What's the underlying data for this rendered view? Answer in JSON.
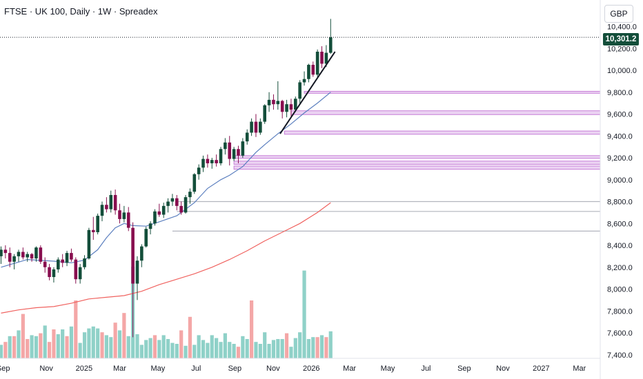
{
  "header": {
    "title": "FTSE · UK 100, Daily · 1W · Spreadex"
  },
  "currency": "GBP",
  "price_tag": "10,301.2",
  "colors": {
    "up": "#134e3a",
    "down": "#880e4f",
    "vol_up": "#8fd1c8",
    "vol_down": "#f4a7a7",
    "ma_fast": "#5b7fbf",
    "ma_slow": "#f0625f",
    "zone_fill": "#ebd2f2",
    "zone_line": "#c77fd8",
    "level_line": "#b2b5be",
    "trend": "#131722"
  },
  "chart_data": {
    "type": "candlestick",
    "title": "FTSE · UK 100, Daily · 1W · Spreadex",
    "ylim": [
      7400,
      10650
    ],
    "y_ticks": [
      "10,400.0",
      "10,200.0",
      "10,000.0",
      "9,800.0",
      "9,600.0",
      "9,400.0",
      "9,200.0",
      "9,000.0",
      "8,800.0",
      "8,600.0",
      "8,400.0",
      "8,200.0",
      "8,000.0",
      "7,800.0",
      "7,600.0",
      "7,400.0"
    ],
    "y_tick_values": [
      10400,
      10200,
      10000,
      9800,
      9600,
      9400,
      9200,
      9000,
      8800,
      8600,
      8400,
      8200,
      8000,
      7800,
      7600,
      7400
    ],
    "x_ticks": [
      {
        "label": "Sep",
        "week": 0.5
      },
      {
        "label": "Nov",
        "week": 10.3
      },
      {
        "label": "2025",
        "week": 18.9
      },
      {
        "label": "Mar",
        "week": 27.0
      },
      {
        "label": "May",
        "week": 35.7
      },
      {
        "label": "Jul",
        "week": 44.4
      },
      {
        "label": "Sep",
        "week": 53.2
      },
      {
        "label": "Nov",
        "week": 61.9
      },
      {
        "label": "2026",
        "week": 70.6
      },
      {
        "label": "Mar",
        "week": 79.3
      },
      {
        "label": "May",
        "week": 88.0
      },
      {
        "label": "Jul",
        "week": 96.7
      },
      {
        "label": "Sep",
        "week": 105.4
      },
      {
        "label": "Nov",
        "week": 114.2
      },
      {
        "label": "2027",
        "week": 122.9
      },
      {
        "label": "Mar",
        "week": 131.6
      }
    ],
    "ohlc": [
      [
        8300,
        8390,
        8230,
        8360
      ],
      [
        8360,
        8400,
        8280,
        8330
      ],
      [
        8330,
        8380,
        8200,
        8250
      ],
      [
        8250,
        8320,
        8180,
        8300
      ],
      [
        8300,
        8360,
        8250,
        8340
      ],
      [
        8340,
        8380,
        8270,
        8290
      ],
      [
        8290,
        8340,
        8250,
        8320
      ],
      [
        8320,
        8330,
        8250,
        8280
      ],
      [
        8280,
        8390,
        8250,
        8380
      ],
      [
        8380,
        8400,
        8230,
        8250
      ],
      [
        8250,
        8290,
        8150,
        8200
      ],
      [
        8200,
        8230,
        8080,
        8110
      ],
      [
        8110,
        8200,
        8060,
        8180
      ],
      [
        8180,
        8290,
        8150,
        8270
      ],
      [
        8270,
        8320,
        8200,
        8240
      ],
      [
        8240,
        8350,
        8210,
        8330
      ],
      [
        8330,
        8370,
        8250,
        8270
      ],
      [
        8270,
        8290,
        8050,
        8090
      ],
      [
        8090,
        8230,
        8050,
        8200
      ],
      [
        8200,
        8310,
        8180,
        8280
      ],
      [
        8280,
        8560,
        8270,
        8540
      ],
      [
        8540,
        8660,
        8450,
        8520
      ],
      [
        8520,
        8690,
        8500,
        8670
      ],
      [
        8670,
        8800,
        8620,
        8770
      ],
      [
        8770,
        8840,
        8700,
        8730
      ],
      [
        8730,
        8900,
        8700,
        8860
      ],
      [
        8860,
        8910,
        8680,
        8720
      ],
      [
        8720,
        8780,
        8600,
        8640
      ],
      [
        8640,
        8760,
        8610,
        8700
      ],
      [
        8700,
        8750,
        8530,
        8560
      ],
      [
        8560,
        8610,
        7560,
        8050
      ],
      [
        8050,
        8300,
        7900,
        8260
      ],
      [
        8260,
        8410,
        8200,
        8390
      ],
      [
        8390,
        8570,
        8380,
        8550
      ],
      [
        8550,
        8620,
        8500,
        8600
      ],
      [
        8600,
        8730,
        8580,
        8710
      ],
      [
        8710,
        8780,
        8660,
        8680
      ],
      [
        8680,
        8790,
        8650,
        8760
      ],
      [
        8760,
        8830,
        8700,
        8800
      ],
      [
        8800,
        8870,
        8760,
        8830
      ],
      [
        8830,
        8860,
        8720,
        8760
      ],
      [
        8760,
        8800,
        8680,
        8700
      ],
      [
        8700,
        8860,
        8690,
        8840
      ],
      [
        8840,
        8920,
        8780,
        8890
      ],
      [
        8890,
        9060,
        8870,
        9050
      ],
      [
        9050,
        9140,
        9000,
        9110
      ],
      [
        9110,
        9220,
        9070,
        9190
      ],
      [
        9190,
        9230,
        9110,
        9150
      ],
      [
        9150,
        9200,
        9100,
        9180
      ],
      [
        9180,
        9230,
        9120,
        9150
      ],
      [
        9150,
        9300,
        9130,
        9280
      ],
      [
        9280,
        9380,
        9230,
        9340
      ],
      [
        9340,
        9400,
        9130,
        9190
      ],
      [
        9190,
        9300,
        9170,
        9280
      ],
      [
        9280,
        9310,
        9150,
        9220
      ],
      [
        9220,
        9380,
        9200,
        9350
      ],
      [
        9350,
        9460,
        9320,
        9430
      ],
      [
        9430,
        9560,
        9400,
        9530
      ],
      [
        9530,
        9600,
        9390,
        9430
      ],
      [
        9430,
        9560,
        9410,
        9530
      ],
      [
        9530,
        9690,
        9510,
        9680
      ],
      [
        9680,
        9800,
        9620,
        9730
      ],
      [
        9730,
        9780,
        9640,
        9690
      ],
      [
        9690,
        9900,
        9640,
        9720
      ],
      [
        9720,
        9730,
        9560,
        9620
      ],
      [
        9620,
        9730,
        9570,
        9690
      ],
      [
        9690,
        9740,
        9580,
        9640
      ],
      [
        9640,
        9760,
        9620,
        9740
      ],
      [
        9740,
        9910,
        9700,
        9890
      ],
      [
        9890,
        9990,
        9860,
        9920
      ],
      [
        9920,
        10060,
        9890,
        10050
      ],
      [
        10050,
        10080,
        9940,
        9960
      ],
      [
        9960,
        10190,
        9940,
        10170
      ],
      [
        10170,
        10220,
        10020,
        10060
      ],
      [
        10060,
        10230,
        10030,
        10160
      ],
      [
        10160,
        10470,
        10150,
        10301.2
      ]
    ],
    "volume": [
      [
        0.14,
        1
      ],
      [
        0.17,
        0
      ],
      [
        0.23,
        1
      ],
      [
        0.23,
        0
      ],
      [
        0.29,
        1
      ],
      [
        0.46,
        0
      ],
      [
        0.2,
        0
      ],
      [
        0.24,
        1
      ],
      [
        0.23,
        1
      ],
      [
        0.26,
        0
      ],
      [
        0.34,
        1
      ],
      [
        0.17,
        0
      ],
      [
        0.3,
        0
      ],
      [
        0.25,
        1
      ],
      [
        0.3,
        1
      ],
      [
        0.23,
        0
      ],
      [
        0.33,
        1
      ],
      [
        0.6,
        0
      ],
      [
        0.16,
        1
      ],
      [
        0.27,
        1
      ],
      [
        0.31,
        1
      ],
      [
        0.33,
        1
      ],
      [
        0.31,
        1
      ],
      [
        0.27,
        0
      ],
      [
        0.24,
        1
      ],
      [
        0.22,
        1
      ],
      [
        0.37,
        0
      ],
      [
        0.29,
        1
      ],
      [
        0.47,
        0
      ],
      [
        0.23,
        1
      ],
      [
        0.95,
        1
      ],
      [
        0.25,
        1
      ],
      [
        0.14,
        1
      ],
      [
        0.19,
        1
      ],
      [
        0.21,
        1
      ],
      [
        0.24,
        0
      ],
      [
        0.19,
        1
      ],
      [
        0.24,
        1
      ],
      [
        0.2,
        1
      ],
      [
        0.16,
        1
      ],
      [
        0.15,
        1
      ],
      [
        0.29,
        0
      ],
      [
        0.13,
        1
      ],
      [
        0.43,
        0
      ],
      [
        0.14,
        1
      ],
      [
        0.24,
        1
      ],
      [
        0.19,
        1
      ],
      [
        0.16,
        1
      ],
      [
        0.24,
        1
      ],
      [
        0.21,
        1
      ],
      [
        0.17,
        1
      ],
      [
        0.26,
        1
      ],
      [
        0.17,
        1
      ],
      [
        0.15,
        1
      ],
      [
        0.12,
        0
      ],
      [
        0.23,
        1
      ],
      [
        0.2,
        1
      ],
      [
        0.6,
        0
      ],
      [
        0.17,
        1
      ],
      [
        0.15,
        1
      ],
      [
        0.27,
        1
      ],
      [
        0.15,
        1
      ],
      [
        0.19,
        1
      ],
      [
        0.2,
        1
      ],
      [
        0.2,
        1
      ],
      [
        0.26,
        0
      ],
      [
        0.12,
        1
      ],
      [
        0.21,
        1
      ],
      [
        0.27,
        1
      ],
      [
        0.91,
        1
      ],
      [
        0.2,
        1
      ],
      [
        0.22,
        1
      ],
      [
        0.22,
        0
      ],
      [
        0.24,
        1
      ],
      [
        0.22,
        0
      ],
      [
        0.28,
        1
      ]
    ],
    "ma_fast": [
      [
        0,
        8200
      ],
      [
        6,
        8270
      ],
      [
        12,
        8255
      ],
      [
        16,
        8240
      ],
      [
        19,
        8265
      ],
      [
        22,
        8360
      ],
      [
        24,
        8470
      ],
      [
        26,
        8560
      ],
      [
        28,
        8600
      ],
      [
        30,
        8580
      ],
      [
        33,
        8575
      ],
      [
        36,
        8615
      ],
      [
        40,
        8670
      ],
      [
        44,
        8790
      ],
      [
        47,
        8920
      ],
      [
        50,
        9000
      ],
      [
        52,
        9040
      ],
      [
        55,
        9120
      ],
      [
        58,
        9250
      ],
      [
        60,
        9320
      ],
      [
        63,
        9420
      ],
      [
        66,
        9510
      ],
      [
        69,
        9610
      ],
      [
        72,
        9700
      ],
      [
        75,
        9800
      ]
    ],
    "ma_slow": [
      [
        0,
        7780
      ],
      [
        4,
        7810
      ],
      [
        8,
        7830
      ],
      [
        12,
        7840
      ],
      [
        16,
        7870
      ],
      [
        20,
        7910
      ],
      [
        24,
        7925
      ],
      [
        28,
        7940
      ],
      [
        32,
        7980
      ],
      [
        36,
        8040
      ],
      [
        40,
        8090
      ],
      [
        44,
        8140
      ],
      [
        48,
        8200
      ],
      [
        52,
        8270
      ],
      [
        56,
        8350
      ],
      [
        60,
        8440
      ],
      [
        64,
        8520
      ],
      [
        68,
        8600
      ],
      [
        72,
        8700
      ],
      [
        75,
        8790
      ]
    ],
    "zones": [
      {
        "y1": 9790,
        "y2": 9808,
        "start_week": 69
      },
      {
        "y1": 9595,
        "y2": 9630,
        "start_week": 66
      },
      {
        "y1": 9415,
        "y2": 9445,
        "start_week": 64.5
      },
      {
        "y1": 9195,
        "y2": 9220,
        "start_week": 53
      },
      {
        "y1": 9140,
        "y2": 9170,
        "start_week": 53
      },
      {
        "y1": 9095,
        "y2": 9125,
        "start_week": 53
      }
    ],
    "levels": [
      {
        "y": 8800,
        "start_week": 40
      },
      {
        "y": 8710,
        "start_week": 40
      },
      {
        "y": 8530,
        "start_week": 39
      }
    ],
    "trendline": {
      "from": [
        63.5,
        9420
      ],
      "to": [
        76,
        10170
      ]
    },
    "last_price": 10301.2
  }
}
